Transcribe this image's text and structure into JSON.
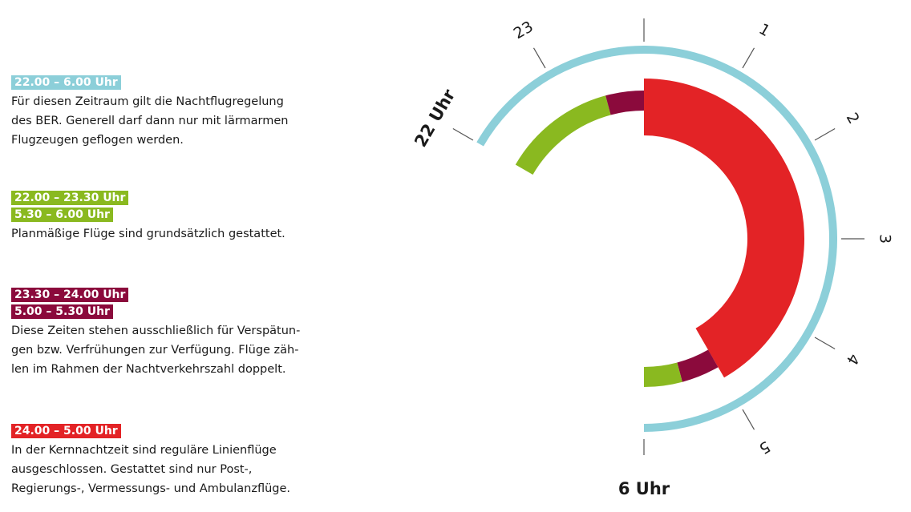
{
  "legend": [
    {
      "ranges": [
        "22.00 – 6.00 Uhr"
      ],
      "color": "#8ccfd9",
      "text": "Für diesen Zeitraum gilt die Nachtflugregelung des BER. Generell darf dann nur mit lärmarmen Flugzeugen geflogen werden.",
      "lines": [
        "Für diesen Zeitraum gilt die Nachtflugregelung",
        "des BER. Generell darf dann nur mit lärmarmen",
        "Flugzeugen geflogen werden."
      ]
    },
    {
      "ranges": [
        "22.00 – 23.30 Uhr",
        "5.30 – 6.00 Uhr"
      ],
      "color": "#8ab920",
      "lines": [
        "Planmäßige Flüge sind grundsätzlich gestattet."
      ]
    },
    {
      "ranges": [
        "23.30 – 24.00 Uhr",
        "5.00 – 5.30 Uhr"
      ],
      "color": "#8b0a3c",
      "lines": [
        "Diese Zeiten stehen ausschließlich für Verspätun-",
        "gen bzw. Verfrühungen zur Verfügung. Flüge zäh-",
        "len im Rahmen der Nachtverkehrszahl doppelt."
      ]
    },
    {
      "ranges": [
        "24.00 – 5.00 Uhr"
      ],
      "color": "#e32326",
      "lines": [
        "In der Kernnachtzeit sind reguläre Linienflüge",
        "ausgeschlossen. Gestattet sind nur Post-,",
        "Regierungs-, Vermessungs- und Ambulanzflüge."
      ]
    }
  ],
  "clock": {
    "hour_labels": [
      {
        "hour": 22,
        "text": "22 Uhr"
      },
      {
        "hour": 23,
        "text": "23"
      },
      {
        "hour": 1,
        "text": "1"
      },
      {
        "hour": 2,
        "text": "2"
      },
      {
        "hour": 3,
        "text": "3"
      },
      {
        "hour": 4,
        "text": "4"
      },
      {
        "hour": 5,
        "text": "5"
      },
      {
        "hour": 6,
        "text": "6 Uhr"
      }
    ],
    "outer_ring": {
      "from": 22.0,
      "to": 6.0,
      "color": "#8ccfd9"
    },
    "segments": [
      {
        "from": 22.0,
        "to": 23.5,
        "color": "#8ab920"
      },
      {
        "from": 23.5,
        "to": 24.0,
        "color": "#8b0a3c"
      },
      {
        "from": 0.0,
        "to": 5.0,
        "color": "#e32326"
      },
      {
        "from": 5.0,
        "to": 5.5,
        "color": "#8b0a3c"
      },
      {
        "from": 5.5,
        "to": 6.0,
        "color": "#8ab920"
      }
    ]
  }
}
